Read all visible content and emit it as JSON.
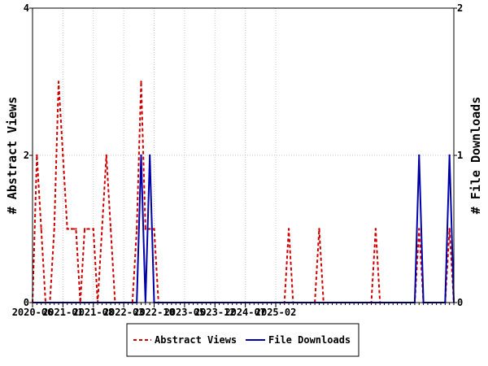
{
  "chart_data": {
    "type": "line",
    "title": "",
    "xlabel": "",
    "y_left_label": "# Abstract Views",
    "y_right_label": "# File Downloads",
    "y_left_ticks": [
      "0",
      "2",
      "4"
    ],
    "y_right_ticks": [
      "0",
      "1",
      "2"
    ],
    "y_left_lim": [
      0,
      4
    ],
    "y_right_lim": [
      0,
      2
    ],
    "x_tick_labels": [
      "2020-06",
      "2021-01",
      "2021-08",
      "2022-03",
      "2022-10",
      "2023-05",
      "2023-12",
      "2024-07",
      "2025-02"
    ],
    "legend_position": "bottom-center",
    "colors": {
      "views": "#cc0000",
      "downloads": "#0000aa"
    },
    "series": [
      {
        "name": "Abstract Views",
        "axis": "left",
        "values": [
          0,
          2,
          1,
          0,
          0,
          1,
          3,
          2,
          1,
          1,
          1,
          0,
          1,
          1,
          1,
          0,
          1,
          2,
          1,
          0,
          0,
          0,
          0,
          0,
          1,
          3,
          1,
          1,
          1,
          0,
          0,
          0,
          0,
          0,
          0,
          0,
          0,
          0,
          0,
          0,
          0,
          0,
          0,
          0,
          0,
          0,
          0,
          0,
          0,
          0,
          0,
          0,
          0,
          0,
          0,
          0,
          0,
          0,
          0,
          1,
          0,
          0,
          0,
          0,
          0,
          0,
          1,
          0,
          0,
          0,
          0,
          0,
          0,
          0,
          0,
          0,
          0,
          0,
          0,
          1,
          0,
          0,
          0,
          0,
          0,
          0,
          0,
          0,
          0,
          1,
          0,
          0,
          0,
          0,
          0,
          0,
          1,
          0
        ]
      },
      {
        "name": "File Downloads",
        "axis": "right",
        "values": [
          0,
          0,
          0,
          0,
          0,
          0,
          0,
          0,
          0,
          0,
          0,
          0,
          0,
          0,
          0,
          0,
          0,
          0,
          0,
          0,
          0,
          0,
          0,
          0,
          0,
          1,
          0,
          1,
          0,
          0,
          0,
          0,
          0,
          0,
          0,
          0,
          0,
          0,
          0,
          0,
          0,
          0,
          0,
          0,
          0,
          0,
          0,
          0,
          0,
          0,
          0,
          0,
          0,
          0,
          0,
          0,
          0,
          0,
          0,
          0,
          0,
          0,
          0,
          0,
          0,
          0,
          0,
          0,
          0,
          0,
          0,
          0,
          0,
          0,
          0,
          0,
          0,
          0,
          0,
          0,
          0,
          0,
          0,
          0,
          0,
          0,
          0,
          0,
          0,
          1,
          0,
          0,
          0,
          0,
          0,
          0,
          1,
          0
        ]
      }
    ]
  }
}
